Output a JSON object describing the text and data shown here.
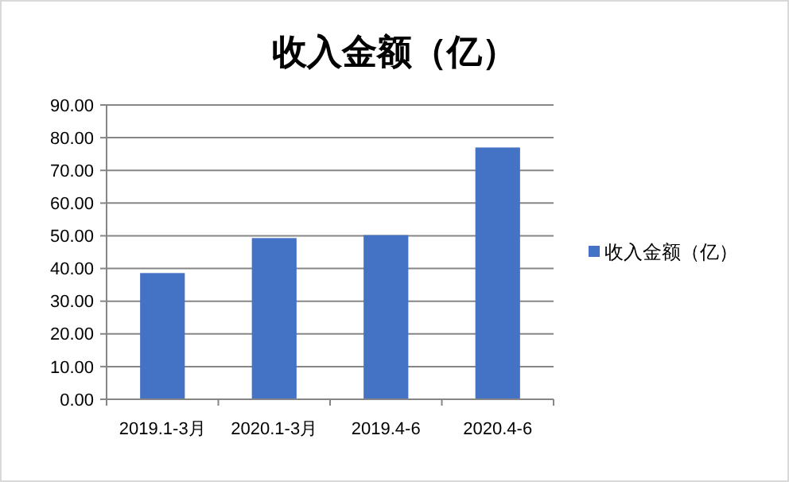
{
  "chart_data": {
    "type": "bar",
    "title": "收入金额（亿）",
    "categories": [
      "2019.1-3月",
      "2020.1-3月",
      "2019.4-6",
      "2020.4-6"
    ],
    "series": [
      {
        "name": "收入金额（亿）",
        "color": "#4472c4",
        "values": [
          38.6,
          49.3,
          50.2,
          77.0
        ]
      }
    ],
    "ylim": [
      0,
      90
    ],
    "yticks": [
      {
        "value": 0,
        "label": "0.00"
      },
      {
        "value": 10,
        "label": "10.00"
      },
      {
        "value": 20,
        "label": "20.00"
      },
      {
        "value": 30,
        "label": "30.00"
      },
      {
        "value": 40,
        "label": "40.00"
      },
      {
        "value": 50,
        "label": "50.00"
      },
      {
        "value": 60,
        "label": "60.00"
      },
      {
        "value": 70,
        "label": "70.00"
      },
      {
        "value": 80,
        "label": "80.00"
      },
      {
        "value": 90,
        "label": "90.00"
      }
    ],
    "grid": "y",
    "legend": "right"
  }
}
